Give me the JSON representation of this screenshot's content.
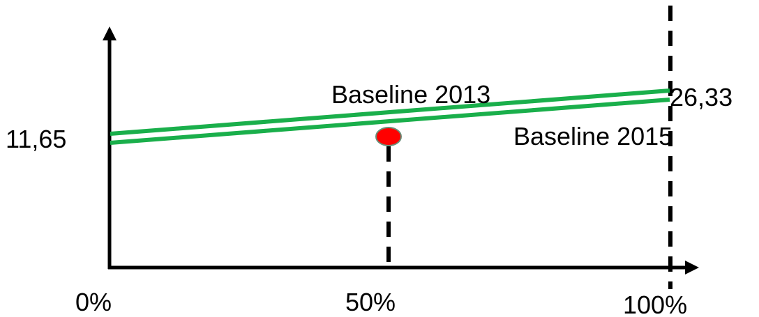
{
  "y_labels": {
    "start": "11,65",
    "end": "26,33"
  },
  "x_labels": {
    "start": "0%",
    "middle": "50%",
    "end": "100%"
  },
  "lines": {
    "upper": "Baseline 2013",
    "lower": "Baseline 2015"
  },
  "colors": {
    "baseline": "#1aaf4b",
    "marker": "#ff0000",
    "marker_outline": "#6b8e78",
    "axis": "#000000"
  }
}
